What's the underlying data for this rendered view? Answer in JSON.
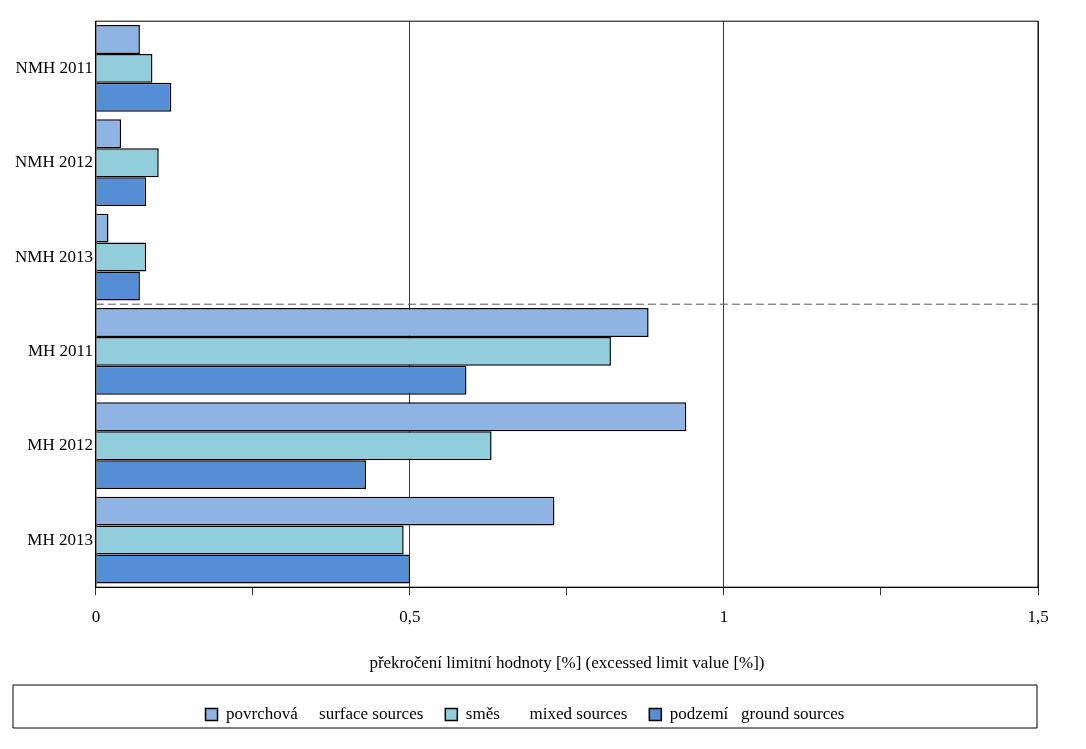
{
  "chart_data": {
    "type": "bar",
    "orientation": "horizontal",
    "xlabel": "překročení limitní hodnoty [%] (excessed limit value [%])",
    "categories": [
      "NMH 2011",
      "NMH 2012",
      "NMH 2013",
      "MH 2011",
      "MH 2012",
      "MH 2013"
    ],
    "series": [
      {
        "name": "povrchová     surface sources",
        "color": "#8eb4e3",
        "values": [
          0.07,
          0.04,
          0.02,
          0.88,
          0.94,
          0.73
        ]
      },
      {
        "name": "směs       mixed sources",
        "color": "#92cddc",
        "values": [
          0.09,
          0.1,
          0.08,
          0.82,
          0.63,
          0.49
        ]
      },
      {
        "name": "podzemí   ground sources",
        "color": "#558ed5",
        "values": [
          0.12,
          0.08,
          0.07,
          0.59,
          0.43,
          0.5
        ]
      }
    ],
    "xlim": [
      0,
      1.5
    ],
    "xticks": [
      0,
      {
        "value": 0.25,
        "label": null
      },
      {
        "value": 0.5,
        "label": "0,5"
      },
      {
        "value": 0.75,
        "label": null
      },
      1,
      {
        "value": 1.25,
        "label": null
      },
      {
        "value": 1.5,
        "label": "1,5"
      }
    ],
    "grid": "x",
    "legend": "bottom",
    "ref_lines": [
      {
        "axis": "y",
        "value": "MH 2011",
        "line_style": "dashed",
        "color": "#555555"
      }
    ]
  }
}
